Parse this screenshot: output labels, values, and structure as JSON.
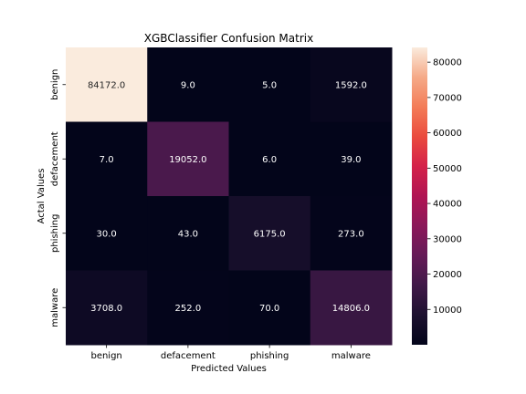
{
  "chart_data": {
    "type": "heatmap",
    "title": "XGBClassifier Confusion Matrix",
    "xlabel": "Predicted Values",
    "ylabel": "Actal Values",
    "x_categories": [
      "benign",
      "defacement",
      "phishing",
      "malware"
    ],
    "y_categories": [
      "benign",
      "defacement",
      "phishing",
      "malware"
    ],
    "values": [
      [
        84172,
        9,
        5,
        1592
      ],
      [
        7,
        19052,
        6,
        39
      ],
      [
        30,
        43,
        6175,
        273
      ],
      [
        3708,
        252,
        70,
        14806
      ]
    ],
    "cell_labels": [
      [
        "84172.0",
        "9.0",
        "5.0",
        "1592.0"
      ],
      [
        "7.0",
        "19052.0",
        "6.0",
        "39.0"
      ],
      [
        "30.0",
        "43.0",
        "6175.0",
        "273.0"
      ],
      [
        "3708.0",
        "252.0",
        "70.0",
        "14806.0"
      ]
    ],
    "colormap": "rocket",
    "vmin": 0,
    "vmax": 84172,
    "colorbar_ticks": [
      10000,
      20000,
      30000,
      40000,
      50000,
      60000,
      70000,
      80000
    ],
    "colorbar_tick_labels": [
      "10000",
      "20000",
      "30000",
      "40000",
      "50000",
      "60000",
      "70000",
      "80000"
    ],
    "colorbar_position": "right"
  }
}
